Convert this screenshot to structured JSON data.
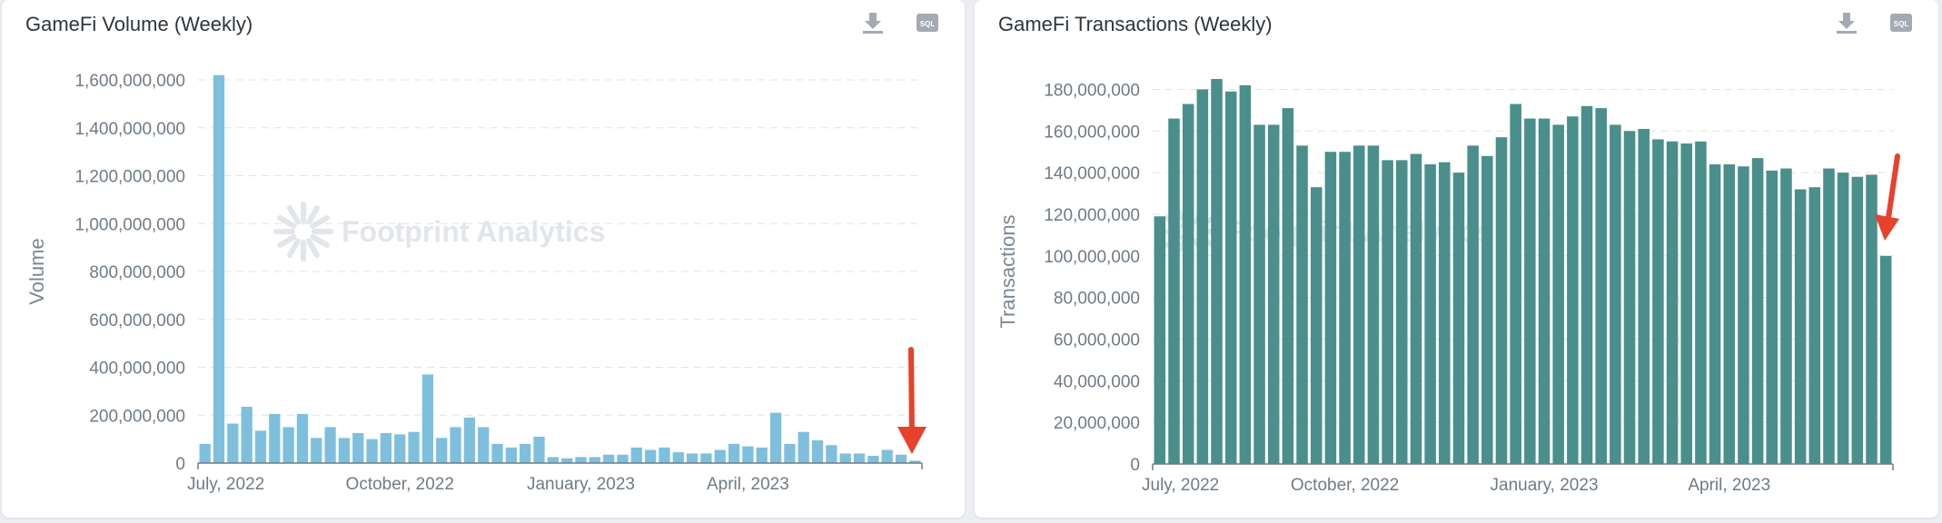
{
  "panels": {
    "left": {
      "title": "GameFi Volume (Weekly)",
      "download_icon": "download-icon",
      "sql_label": "SQL"
    },
    "right": {
      "title": "GameFi Transactions (Weekly)",
      "download_icon": "download-icon",
      "sql_label": "SQL"
    }
  },
  "watermark": "Footprint Analytics",
  "colors": {
    "volume_bar": "#7dbfdd",
    "transactions_bar": "#4a8f8b",
    "annotation_arrow": "#e8412c"
  },
  "chart_data": [
    {
      "type": "bar",
      "title": "GameFi Volume (Weekly)",
      "xlabel": "",
      "ylabel": "Volume",
      "ylim": [
        0,
        1600000000
      ],
      "yticks": [
        0,
        200000000,
        400000000,
        600000000,
        800000000,
        1000000000,
        1200000000,
        1400000000,
        1600000000
      ],
      "ytick_labels": [
        "0",
        "200,000,000",
        "400,000,000",
        "600,000,000",
        "800,000,000",
        "1,000,000,000",
        "1,200,000,000",
        "1,400,000,000",
        "1,600,000,000"
      ],
      "xtick_labels": [
        "July, 2022",
        "October, 2022",
        "January, 2023",
        "April, 2023"
      ],
      "xtick_bar_index": [
        0,
        14,
        27,
        39
      ],
      "grid": true,
      "values": [
        80000000,
        1620000000,
        165000000,
        235000000,
        135000000,
        205000000,
        150000000,
        205000000,
        105000000,
        150000000,
        105000000,
        125000000,
        100000000,
        125000000,
        120000000,
        130000000,
        370000000,
        105000000,
        150000000,
        190000000,
        150000000,
        80000000,
        65000000,
        80000000,
        110000000,
        25000000,
        20000000,
        25000000,
        25000000,
        35000000,
        35000000,
        65000000,
        55000000,
        65000000,
        45000000,
        40000000,
        40000000,
        55000000,
        80000000,
        70000000,
        65000000,
        210000000,
        80000000,
        130000000,
        95000000,
        75000000,
        40000000,
        40000000,
        30000000,
        55000000,
        35000000,
        10000000
      ]
    },
    {
      "type": "bar",
      "title": "GameFi Transactions (Weekly)",
      "xlabel": "",
      "ylabel": "Transactions",
      "ylim": [
        0,
        185000000
      ],
      "yticks": [
        0,
        20000000,
        40000000,
        60000000,
        80000000,
        100000000,
        120000000,
        140000000,
        160000000,
        180000000
      ],
      "ytick_labels": [
        "0",
        "20,000,000",
        "40,000,000",
        "60,000,000",
        "80,000,000",
        "100,000,000",
        "120,000,000",
        "140,000,000",
        "160,000,000",
        "180,000,000"
      ],
      "xtick_labels": [
        "July, 2022",
        "October, 2022",
        "January, 2023",
        "April, 2023"
      ],
      "xtick_bar_index": [
        0,
        13,
        27,
        40
      ],
      "grid": true,
      "values": [
        119000000,
        166000000,
        173000000,
        180000000,
        185000000,
        179000000,
        182000000,
        163000000,
        163000000,
        171000000,
        153000000,
        133000000,
        150000000,
        150000000,
        153000000,
        153000000,
        146000000,
        146000000,
        149000000,
        144000000,
        145000000,
        140000000,
        153000000,
        148000000,
        157000000,
        173000000,
        166000000,
        166000000,
        163000000,
        167000000,
        172000000,
        171000000,
        163000000,
        160000000,
        161000000,
        156000000,
        155000000,
        154000000,
        155000000,
        144000000,
        144000000,
        143000000,
        147000000,
        141000000,
        142000000,
        132000000,
        133000000,
        142000000,
        140000000,
        138000000,
        139000000,
        100000000
      ]
    }
  ]
}
